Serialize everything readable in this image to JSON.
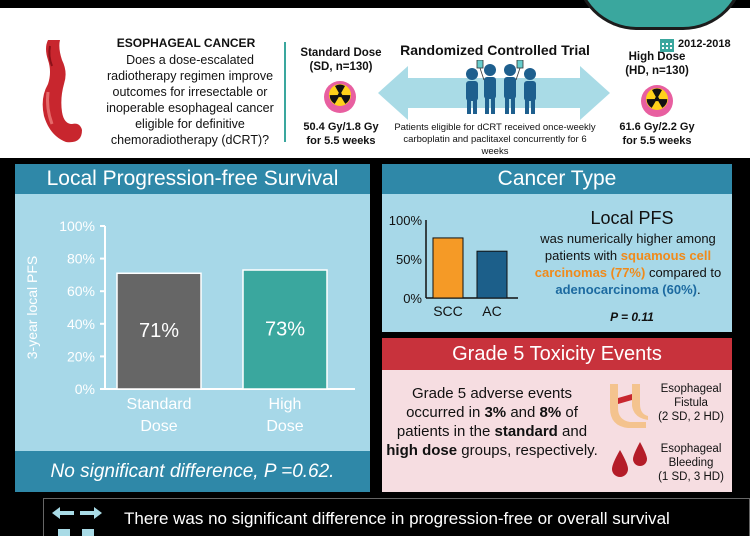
{
  "header": {
    "question_title": "ESOPHAGEAL CANCER",
    "question": "Does a dose-escalated radiotherapy regimen improve outcomes for irresectable or inoperable esophageal cancer eligible for definitive chemoradiotherapy (dCRT)?",
    "standard_arm": {
      "title": "Standard Dose",
      "subtitle": "(SD, n=130)",
      "dose": "50.4 Gy/1.8 Gy",
      "duration": "for 5.5 weeks"
    },
    "high_arm": {
      "title": "High Dose",
      "subtitle": "(HD, n=130)",
      "dose": "61.6 Gy/2.2 Gy",
      "duration": "for 5.5 weeks"
    },
    "trial_title": "Randomized Controlled Trial",
    "eligibility": "Patients eligible for dCRT received once-weekly carboplatin and paclitaxel concurrently for 6 weeks",
    "years": "2012-2018",
    "icons": [
      "stomach-icon",
      "radiation-icon",
      "people-icon",
      "double-arrow-icon",
      "calendar-icon"
    ]
  },
  "lpfs_panel": {
    "title": "Local Progression-free Survival",
    "footer": "No significant difference, P =0.62."
  },
  "cancer_type_panel": {
    "title": "Cancer Type",
    "headline": "Local PFS",
    "text_1": "was numerically higher among patients with",
    "scc_text": "squamous cell carcinomas (77%)",
    "text_2": "compared to",
    "ac_text": "adenocarcinoma (60%)",
    "text_3": ".",
    "p_value": "P = 0.11"
  },
  "toxicity_panel": {
    "title": "Grade 5 Toxicity Events",
    "text_1": "Grade 5 adverse events occurred in",
    "pct_1": "3%",
    "text_2": "and",
    "pct_2": "8%",
    "text_3": "of patients in the",
    "standard": "standard",
    "text_4": "and",
    "high": "high dose",
    "text_5": "groups, respectively.",
    "fistula_title": "Esophageal Fistula",
    "fistula_counts": "(2 SD, 2 HD)",
    "bleeding_title": "Esophageal Bleeding",
    "bleeding_counts": "(1 SD, 3 HD)"
  },
  "bottom": {
    "text": "There was no significant difference in progression-free or overall survival"
  },
  "colors": {
    "teal": "#3aa79e",
    "panel_blue": "#2f88a8",
    "panel_light": "#a7d8e8",
    "standard_bar": "#666666",
    "high_bar": "#3aa79e",
    "scc_bar": "#f59a26",
    "ac_bar": "#1c5f8a",
    "toxicity_red": "#c8323c"
  },
  "chart_data": [
    {
      "type": "bar",
      "categories": [
        "Standard Dose",
        "High Dose"
      ],
      "values": [
        71,
        73
      ],
      "data_labels": [
        "71%",
        "73%"
      ],
      "ylabel": "3-year local PFS",
      "yticks": [
        "0%",
        "20%",
        "40%",
        "60%",
        "80%",
        "100%"
      ],
      "ylim": [
        0,
        100
      ],
      "grid": false
    },
    {
      "type": "bar",
      "categories": [
        "SCC",
        "AC"
      ],
      "values": [
        77,
        60
      ],
      "yticks": [
        "0%",
        "50%",
        "100%"
      ],
      "ylim": [
        0,
        100
      ],
      "grid": false
    }
  ]
}
